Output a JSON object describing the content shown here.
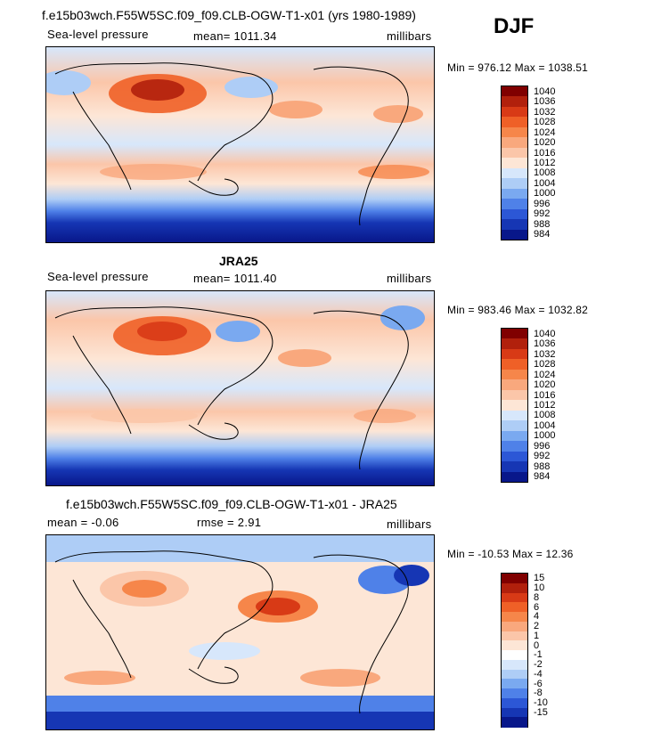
{
  "header": {
    "season": "DJF"
  },
  "panels": [
    {
      "id": "model",
      "title": "f.e15b03wch.F55W5SC.f09_f09.CLB-OGW-T1-x01 (yrs 1980-1989)",
      "left_label": "Sea-level pressure",
      "middle_label": "mean=  1011.34",
      "right_label": "millibars",
      "minmax": "Min = 976.12  Max = 1038.51",
      "colorbar": {
        "labels": [
          "1040",
          "1036",
          "1032",
          "1028",
          "1024",
          "1020",
          "1016",
          "1012",
          "1008",
          "1004",
          "1000",
          "996",
          "992",
          "988",
          "984"
        ],
        "colors": [
          "#800000",
          "#b1200c",
          "#d83a16",
          "#ef6027",
          "#f6864a",
          "#f9a87d",
          "#fbc6a9",
          "#fde6d6",
          "#d7e7fb",
          "#aecdf6",
          "#7aa9f0",
          "#4f81e8",
          "#2c57d6",
          "#1636b4",
          "#08178a"
        ]
      }
    },
    {
      "id": "obs",
      "title": "JRA25",
      "left_label": "Sea-level pressure",
      "middle_label": "mean=  1011.40",
      "right_label": "millibars",
      "minmax": "Min = 983.46  Max = 1032.82",
      "colorbar": {
        "labels": [
          "1040",
          "1036",
          "1032",
          "1028",
          "1024",
          "1020",
          "1016",
          "1012",
          "1008",
          "1004",
          "1000",
          "996",
          "992",
          "988",
          "984"
        ],
        "colors": [
          "#800000",
          "#b1200c",
          "#d83a16",
          "#ef6027",
          "#f6864a",
          "#f9a87d",
          "#fbc6a9",
          "#fde6d6",
          "#d7e7fb",
          "#aecdf6",
          "#7aa9f0",
          "#4f81e8",
          "#2c57d6",
          "#1636b4",
          "#08178a"
        ]
      }
    },
    {
      "id": "diff",
      "title": "f.e15b03wch.F55W5SC.f09_f09.CLB-OGW-T1-x01 - JRA25",
      "left_label": "mean =   -0.06",
      "middle_label": "rmse =    2.91",
      "right_label": "millibars",
      "minmax": "Min = -10.53  Max =   12.36",
      "colorbar": {
        "labels": [
          "15",
          "10",
          "8",
          "6",
          "4",
          "2",
          "1",
          "0",
          "-1",
          "-2",
          "-4",
          "-6",
          "-8",
          "-10",
          "-15"
        ],
        "colors": [
          "#800000",
          "#b1200c",
          "#d83a16",
          "#ef6027",
          "#f6864a",
          "#f9a87d",
          "#fbc6a9",
          "#fde6d6",
          "#ffffff",
          "#d7e7fb",
          "#aecdf6",
          "#7aa9f0",
          "#4f81e8",
          "#2c57d6",
          "#1636b4",
          "#08178a"
        ]
      }
    }
  ]
}
